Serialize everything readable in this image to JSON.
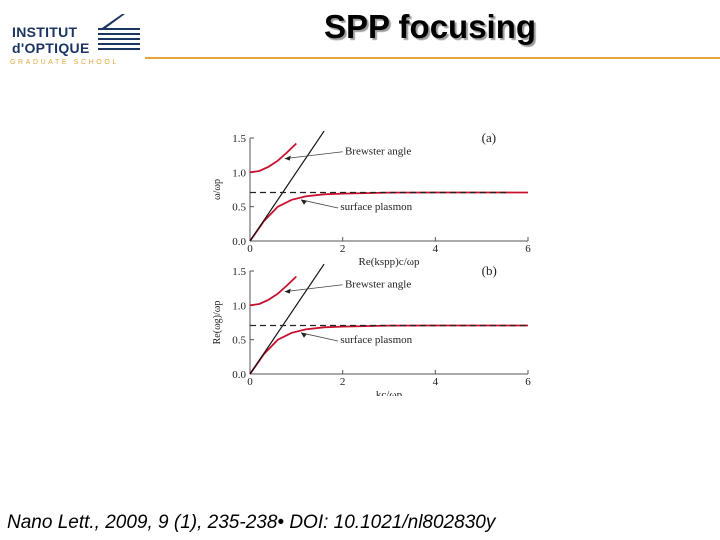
{
  "slide": {
    "title": "SPP focusing",
    "citation": "Nano Lett., 2009, 9 (1), 235-238• DOI: 10.1021/nl802830y"
  },
  "logo": {
    "line1": "INSTITUT",
    "line2": "d'OPTIQUE",
    "line3": "GRADUATE SCHOOL",
    "colors": {
      "text": "#1b3563",
      "accent": "#e2a63b"
    }
  },
  "colors": {
    "curve": "#c8102e",
    "line": "#111111",
    "dashed": "#222222"
  },
  "chart_data": [
    {
      "type": "line",
      "panel_label": "(a)",
      "xlabel": "Re(kspp)c/ωp",
      "ylabel": "ω/ωp",
      "xlim": [
        0,
        6
      ],
      "ylim": [
        0,
        1.5
      ],
      "xticks": [
        "0",
        "2",
        "4",
        "6"
      ],
      "yticks": [
        "0.0",
        "0.5",
        "1.0",
        "1.5"
      ],
      "annotations": [
        "Brewster angle",
        "surface plasmon"
      ],
      "series": [
        {
          "kind": "upper",
          "color": "#c8102e",
          "x": [
            0,
            0.2,
            0.4,
            0.6,
            0.8,
            1.0
          ],
          "y": [
            1.0,
            1.02,
            1.08,
            1.17,
            1.29,
            1.42
          ]
        },
        {
          "kind": "lower",
          "color": "#c8102e",
          "x": [
            0,
            0.3,
            0.6,
            0.9,
            1.2,
            1.6,
            2.0,
            3.0,
            4.0,
            6.0
          ],
          "y": [
            0,
            0.29,
            0.5,
            0.6,
            0.65,
            0.68,
            0.69,
            0.705,
            0.707,
            0.707
          ]
        },
        {
          "kind": "light-line",
          "color": "#111111",
          "x": [
            0,
            1.6
          ],
          "y": [
            0,
            1.6
          ]
        },
        {
          "kind": "asymptote",
          "color": "#222222",
          "x": [
            0,
            5.6
          ],
          "y": [
            0.707,
            0.707
          ]
        }
      ]
    },
    {
      "type": "line",
      "panel_label": "(b)",
      "xlabel": "kc/ωp",
      "ylabel": "Re(ωg)/ωp",
      "xlim": [
        0,
        6
      ],
      "ylim": [
        0,
        1.5
      ],
      "xticks": [
        "0",
        "2",
        "4",
        "6"
      ],
      "yticks": [
        "0.0",
        "0.5",
        "1.0",
        "1.5"
      ],
      "annotations": [
        "Brewster angle",
        "surface plasmon"
      ],
      "series": [
        {
          "kind": "upper",
          "color": "#c8102e",
          "x": [
            0,
            0.2,
            0.4,
            0.6,
            0.8,
            1.0
          ],
          "y": [
            1.0,
            1.02,
            1.08,
            1.17,
            1.29,
            1.42
          ]
        },
        {
          "kind": "lower",
          "color": "#c8102e",
          "x": [
            0,
            0.3,
            0.6,
            0.9,
            1.2,
            1.6,
            2.0,
            3.0,
            4.0,
            6.0
          ],
          "y": [
            0,
            0.29,
            0.5,
            0.6,
            0.65,
            0.68,
            0.69,
            0.705,
            0.707,
            0.707
          ]
        },
        {
          "kind": "light-line",
          "color": "#111111",
          "x": [
            0,
            1.6
          ],
          "y": [
            0,
            1.6
          ]
        },
        {
          "kind": "asymptote",
          "color": "#222222",
          "x": [
            0,
            6.0
          ],
          "y": [
            0.707,
            0.707
          ]
        }
      ]
    }
  ]
}
